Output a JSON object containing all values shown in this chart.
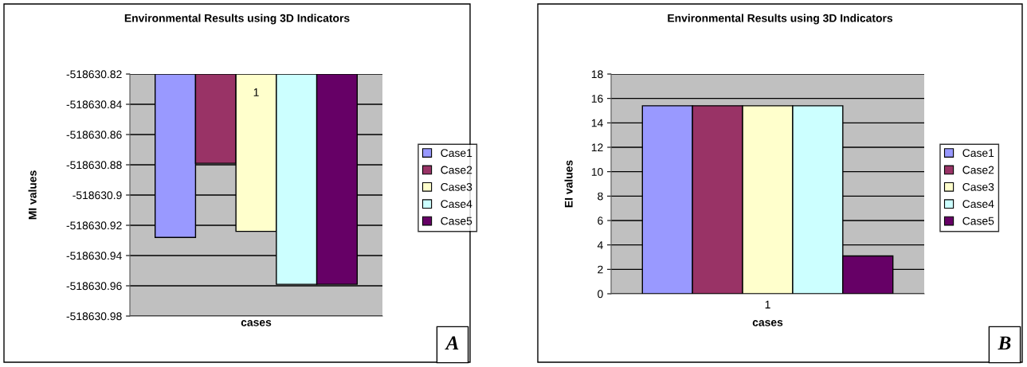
{
  "chart_data": [
    {
      "type": "bar",
      "title": "Environmental Results using 3D Indicators",
      "xlabel": "cases",
      "ylabel": "MI values",
      "categories": [
        "1"
      ],
      "series": [
        {
          "name": "Case1",
          "color": "#9999ff",
          "values": [
            -518630.928
          ]
        },
        {
          "name": "Case2",
          "color": "#993366",
          "values": [
            -518630.879
          ]
        },
        {
          "name": "Case3",
          "color": "#ffffcc",
          "values": [
            -518630.924
          ]
        },
        {
          "name": "Case4",
          "color": "#ccffff",
          "values": [
            -518630.959
          ]
        },
        {
          "name": "Case5",
          "color": "#660066",
          "values": [
            -518630.959
          ]
        }
      ],
      "ylim": [
        -518630.98,
        -518630.82
      ],
      "yticks": [
        {
          "value": -518630.98,
          "label": "-518630.98"
        },
        {
          "value": -518630.96,
          "label": "-518630.96"
        },
        {
          "value": -518630.94,
          "label": "-518630.94"
        },
        {
          "value": -518630.92,
          "label": "-518630.92"
        },
        {
          "value": -518630.9,
          "label": "-518630.9"
        },
        {
          "value": -518630.88,
          "label": "-518630.88"
        },
        {
          "value": -518630.86,
          "label": "-518630.86"
        },
        {
          "value": -518630.84,
          "label": "-518630.84"
        },
        {
          "value": -518630.82,
          "label": "-518630.82"
        }
      ],
      "grid": "y",
      "legend": "right",
      "annotations": [
        "A"
      ]
    },
    {
      "type": "bar",
      "title": "Environmental Results using 3D Indicators",
      "xlabel": "cases",
      "ylabel": "EI values",
      "categories": [
        "1"
      ],
      "series": [
        {
          "name": "Case1",
          "color": "#9999ff",
          "values": [
            15.4
          ]
        },
        {
          "name": "Case2",
          "color": "#993366",
          "values": [
            15.4
          ]
        },
        {
          "name": "Case3",
          "color": "#ffffcc",
          "values": [
            15.4
          ]
        },
        {
          "name": "Case4",
          "color": "#ccffff",
          "values": [
            15.4
          ]
        },
        {
          "name": "Case5",
          "color": "#660066",
          "values": [
            3.1
          ]
        }
      ],
      "ylim": [
        0,
        18
      ],
      "yticks": [
        0,
        2,
        4,
        6,
        8,
        10,
        12,
        14,
        16,
        18
      ],
      "grid": "y",
      "legend": "right",
      "annotations": [
        "B"
      ]
    }
  ]
}
